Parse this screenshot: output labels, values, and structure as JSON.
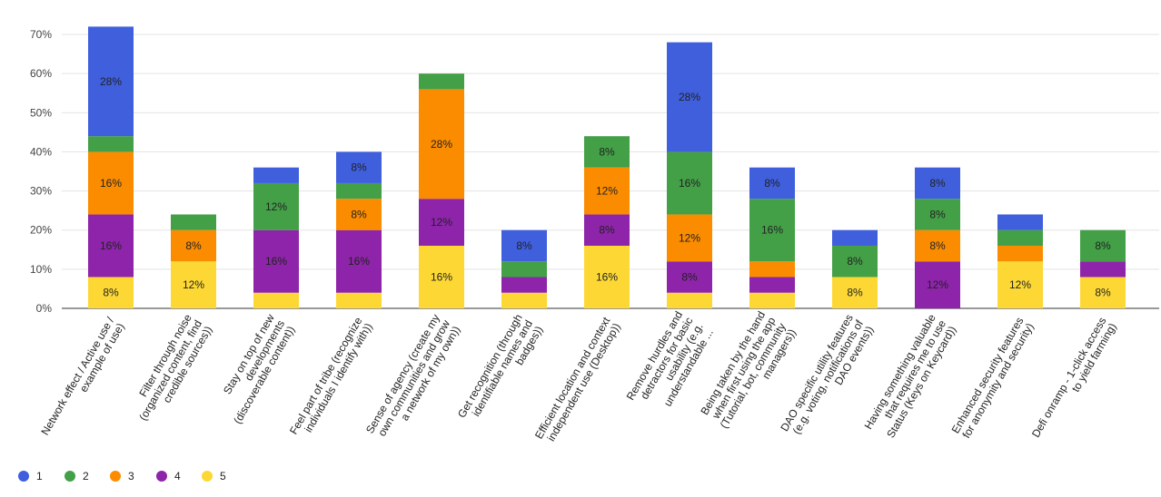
{
  "chart_data": {
    "type": "bar",
    "stacked": true,
    "title": "",
    "xlabel": "",
    "ylabel": "",
    "ylim": [
      0,
      70
    ],
    "ytick_values": [
      0,
      10,
      20,
      30,
      40,
      50,
      60,
      70
    ],
    "ytick_labels": [
      "0%",
      "10%",
      "20%",
      "30%",
      "40%",
      "50%",
      "60%",
      "70%"
    ],
    "grid": true,
    "legend_position": "bottom-left",
    "categories": [
      [
        "Network effect / Active use /",
        "example of use)"
      ],
      [
        "Filter through noise",
        "(organized content, find",
        "credible sources))"
      ],
      [
        "Stay on top of new",
        "developments",
        "(discoverable content))"
      ],
      [
        "Feel part of tribe (recognize",
        "individuals I identify with))"
      ],
      [
        "Sense of agency (create my",
        "own communities and grow",
        "a network of my own))"
      ],
      [
        "Get recognition (through",
        "identifiable names and",
        "badges))"
      ],
      [
        "Efficient location and context",
        "independent use (Desktop))"
      ],
      [
        "Remove hurdles and",
        "detractors for basic",
        "usability (e.g.",
        "understandable ..."
      ],
      [
        "Being taken by the hand",
        "when first using the app",
        "(Tutorial, bot, community",
        "managers))"
      ],
      [
        "DAO specific utility features",
        "(e.g. voting, notifications of",
        "DAO events))"
      ],
      [
        "Having something valuable",
        "that requires me to use",
        "Status (Keys on Keycard))"
      ],
      [
        "Enhanced security features",
        "for anonymity and security)"
      ],
      [
        "Defi onramp - 1-click access",
        "to yield farming)"
      ]
    ],
    "series": [
      {
        "name": "5",
        "color": "#fdd835",
        "values": [
          8,
          12,
          4,
          4,
          16,
          4,
          16,
          4,
          4,
          8,
          0,
          12,
          8
        ],
        "labels": [
          "8%",
          "12%",
          "",
          "",
          "16%",
          "",
          "16%",
          "",
          "",
          "8%",
          "",
          "12%",
          "8%"
        ]
      },
      {
        "name": "4",
        "color": "#8e24aa",
        "values": [
          16,
          0,
          16,
          16,
          12,
          4,
          8,
          8,
          4,
          0,
          12,
          0,
          4
        ],
        "labels": [
          "16%",
          "",
          "16%",
          "16%",
          "12%",
          "",
          "8%",
          "8%",
          "",
          "",
          "12%",
          "",
          ""
        ]
      },
      {
        "name": "3",
        "color": "#fb8c00",
        "values": [
          16,
          8,
          0,
          8,
          28,
          0,
          12,
          12,
          4,
          0,
          8,
          4,
          0
        ],
        "labels": [
          "16%",
          "8%",
          "",
          "8%",
          "28%",
          "",
          "12%",
          "12%",
          "",
          "",
          "8%",
          "",
          ""
        ]
      },
      {
        "name": "2",
        "color": "#43a047",
        "values": [
          4,
          4,
          12,
          4,
          4,
          4,
          8,
          16,
          16,
          8,
          8,
          4,
          8
        ],
        "labels": [
          "",
          "",
          "12%",
          "",
          "",
          "",
          "8%",
          "16%",
          "16%",
          "8%",
          "8%",
          "",
          "8%"
        ]
      },
      {
        "name": "1",
        "color": "#3f5fdd",
        "values": [
          28,
          0,
          4,
          8,
          0,
          8,
          0,
          28,
          8,
          4,
          8,
          4,
          0
        ],
        "labels": [
          "28%",
          "",
          "",
          "8%",
          "",
          "8%",
          "",
          "28%",
          "8%",
          "",
          "8%",
          "",
          ""
        ]
      }
    ],
    "legend": [
      {
        "name": "1",
        "color": "#3f5fdd"
      },
      {
        "name": "2",
        "color": "#43a047"
      },
      {
        "name": "3",
        "color": "#fb8c00"
      },
      {
        "name": "4",
        "color": "#8e24aa"
      },
      {
        "name": "5",
        "color": "#fdd835"
      }
    ]
  }
}
